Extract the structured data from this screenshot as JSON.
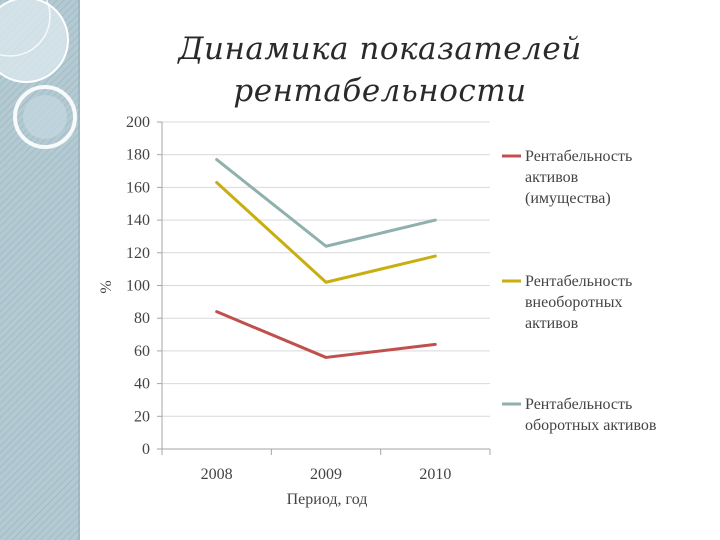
{
  "slide": {
    "title_line1": "Динамика показателей",
    "title_line2": "рентабельности"
  },
  "colors": {
    "sidebar_base": "#a9c2cc",
    "sidebar_light": "#dbe8ee",
    "axis": "#a6a6a6",
    "text": "#444444"
  },
  "chart_data": {
    "type": "line",
    "categories": [
      "2008",
      "2009",
      "2010"
    ],
    "series": [
      {
        "name": "Рентабельность активов (имущества)",
        "legend_lines": [
          "Рентабельность",
          "активов",
          "(имущества)"
        ],
        "values": [
          84,
          56,
          64
        ],
        "color": "#c0504d"
      },
      {
        "name": "Рентабельность внеоборотных активов",
        "legend_lines": [
          "Рентабельность",
          "внеоборотных",
          "активов"
        ],
        "values": [
          163,
          102,
          118
        ],
        "color": "#c8ae10"
      },
      {
        "name": "Рентабельность оборотных активов",
        "legend_lines": [
          "Рентабельность",
          "оборотных активов"
        ],
        "values": [
          177,
          124,
          140
        ],
        "color": "#8fb0ad"
      }
    ],
    "ylim": [
      0,
      200
    ],
    "yticks": [
      "0",
      "20",
      "40",
      "60",
      "80",
      "100",
      "120",
      "140",
      "160",
      "180",
      "200"
    ],
    "xlabel": "Период, год",
    "ylabel": "%",
    "grid": true,
    "legend_position": "right"
  }
}
